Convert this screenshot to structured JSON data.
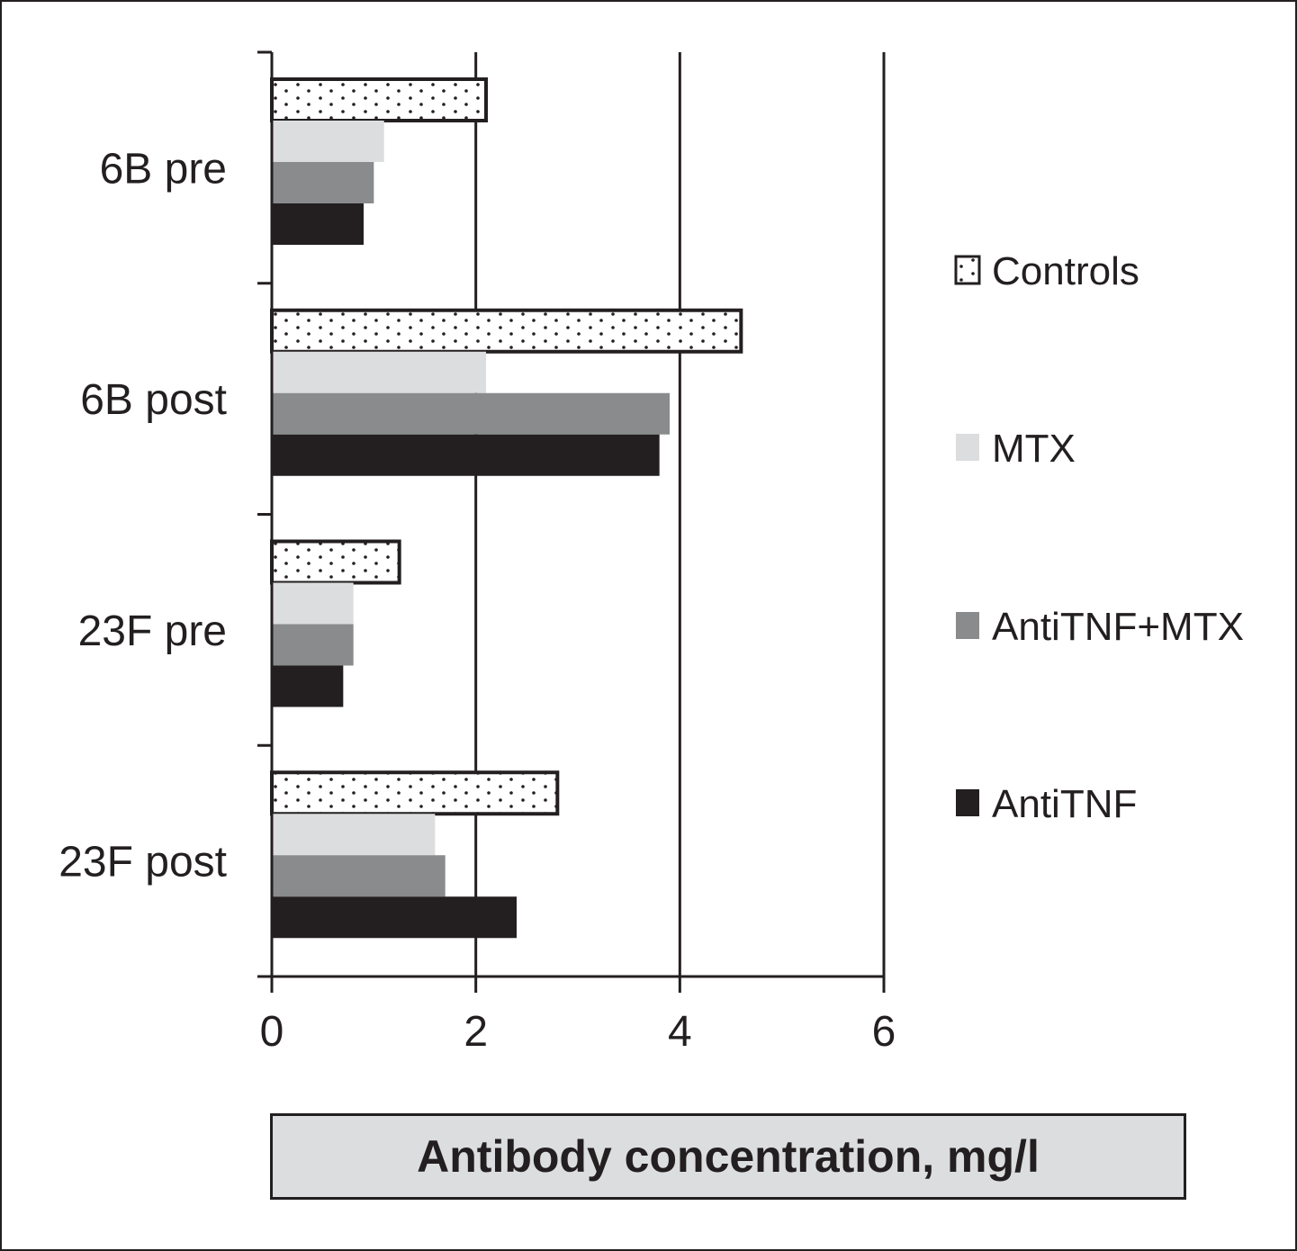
{
  "chart_data": {
    "type": "bar",
    "orientation": "horizontal",
    "categories": [
      "6B pre",
      "6B post",
      "23F pre",
      "23F post"
    ],
    "series": [
      {
        "name": "Controls",
        "values": [
          2.1,
          4.6,
          1.25,
          2.8
        ],
        "color": "#ffffff",
        "pattern": "dotted",
        "stroke": "#231f20"
      },
      {
        "name": "MTX",
        "values": [
          1.1,
          2.1,
          0.8,
          1.6
        ],
        "color": "#dcddde"
      },
      {
        "name": "AntiTNF+MTX",
        "values": [
          1.0,
          3.9,
          0.8,
          1.7
        ],
        "color": "#8a8b8d"
      },
      {
        "name": "AntiTNF",
        "values": [
          0.9,
          3.8,
          0.7,
          2.4
        ],
        "color": "#231f20"
      }
    ],
    "xlabel": "Antibody concentration, mg/l",
    "ylabel": "",
    "xlim": [
      0,
      6
    ],
    "xticks": [
      "0",
      "2",
      "4",
      "6"
    ],
    "grid": "vertical lines at x ticks",
    "legend_position": "right"
  }
}
